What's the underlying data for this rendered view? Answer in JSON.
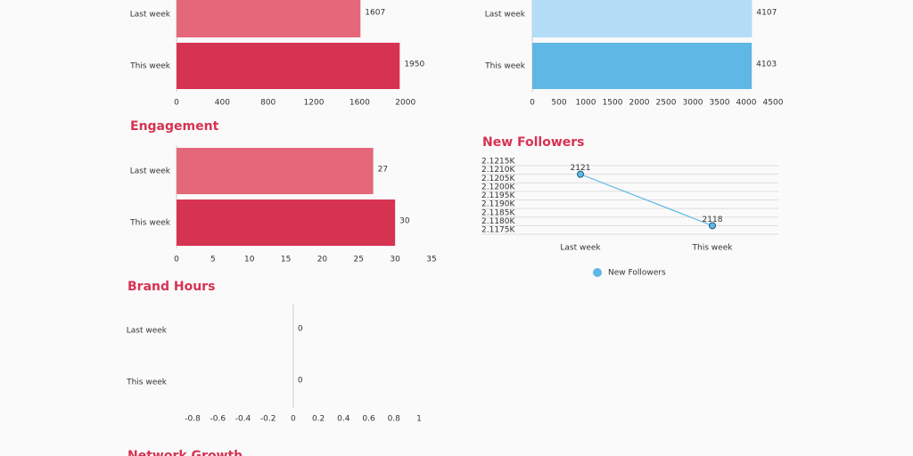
{
  "chart_data": [
    {
      "type": "hbar",
      "categories": [
        "Last week",
        "This week"
      ],
      "values": [
        1607,
        1950
      ],
      "colors": [
        "#e5677a",
        "#d63353"
      ],
      "xlim": [
        0,
        2080
      ],
      "xticks": [
        0,
        400,
        800,
        1200,
        1600,
        2000
      ]
    },
    {
      "type": "hbar",
      "categories": [
        "Last week",
        "This week"
      ],
      "values": [
        4107,
        4103
      ],
      "colors": [
        "#b3dcf7",
        "#5fb7e5"
      ],
      "xlim": [
        0,
        4500
      ],
      "xticks": [
        0,
        500,
        1000,
        1500,
        2000,
        2500,
        3000,
        3500,
        4000,
        4500
      ]
    },
    {
      "type": "hbar",
      "title": "Engagement",
      "categories": [
        "Last week",
        "This week"
      ],
      "values": [
        27,
        30
      ],
      "colors": [
        "#e5677a",
        "#d63353"
      ],
      "xlim": [
        0,
        35
      ],
      "xticks": [
        0,
        5,
        10,
        15,
        20,
        25,
        30,
        35
      ]
    },
    {
      "type": "line",
      "title": "New Followers",
      "categories": [
        "Last week",
        "This week"
      ],
      "series": [
        {
          "name": "New Followers",
          "color": "#5fb7e5",
          "values": [
            2121,
            2118
          ]
        }
      ],
      "ylim": [
        2117.5,
        2121.5
      ],
      "yticks": [
        {
          "value": 2121.5,
          "label": "2.1215K"
        },
        {
          "value": 2121,
          "label": "2.1210K"
        },
        {
          "value": 2120.5,
          "label": "2.1205K"
        },
        {
          "value": 2120,
          "label": "2.1200K"
        },
        {
          "value": 2119.5,
          "label": "2.1195K"
        },
        {
          "value": 2119,
          "label": "2.1190K"
        },
        {
          "value": 2118.5,
          "label": "2.1185K"
        },
        {
          "value": 2118,
          "label": "2.1180K"
        },
        {
          "value": 2117.5,
          "label": "2.1175K"
        }
      ],
      "grid": true
    },
    {
      "type": "hbar",
      "title": "Brand Hours",
      "categories": [
        "Last week",
        "This week"
      ],
      "values": [
        0,
        0
      ],
      "colors": [
        "#e5677a",
        "#d63353"
      ],
      "xlim": [
        -0.9,
        1.05
      ],
      "xticks": [
        -0.8,
        -0.6,
        -0.4,
        -0.2,
        0,
        0.2,
        0.4,
        0.6,
        0.8,
        1.0
      ]
    },
    {
      "type": "hbar",
      "title": "Network Growth"
    }
  ]
}
